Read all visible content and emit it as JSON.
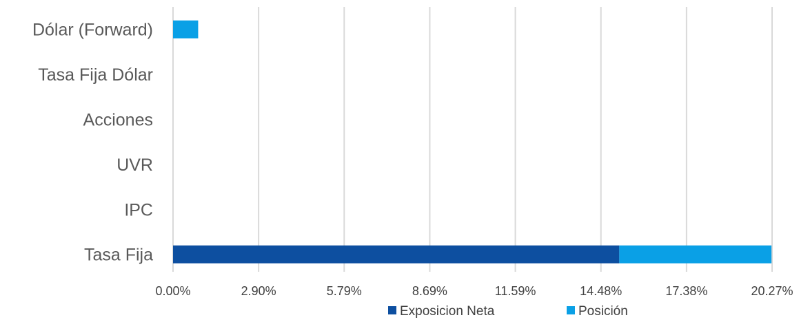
{
  "chart_data": {
    "type": "bar",
    "orientation": "horizontal",
    "stacked": true,
    "categories": [
      "Dólar (Forward)",
      "Tasa Fija Dólar",
      "Acciones",
      "UVR",
      "IPC",
      "Tasa Fija"
    ],
    "series": [
      {
        "name": "Exposicion Neta",
        "color": "#0d4fa0",
        "values": [
          0,
          0,
          0,
          0,
          0,
          15.1
        ]
      },
      {
        "name": "Posición",
        "color": "#0aa0e6",
        "values": [
          0.85,
          0,
          0,
          0,
          0,
          5.15
        ]
      }
    ],
    "x_ticks": [
      "0.00%",
      "2.90%",
      "5.79%",
      "8.69%",
      "11.59%",
      "14.48%",
      "17.38%",
      "20.27%"
    ],
    "xlim": [
      0,
      20.27
    ],
    "grid": true,
    "legend_position": "bottom"
  }
}
